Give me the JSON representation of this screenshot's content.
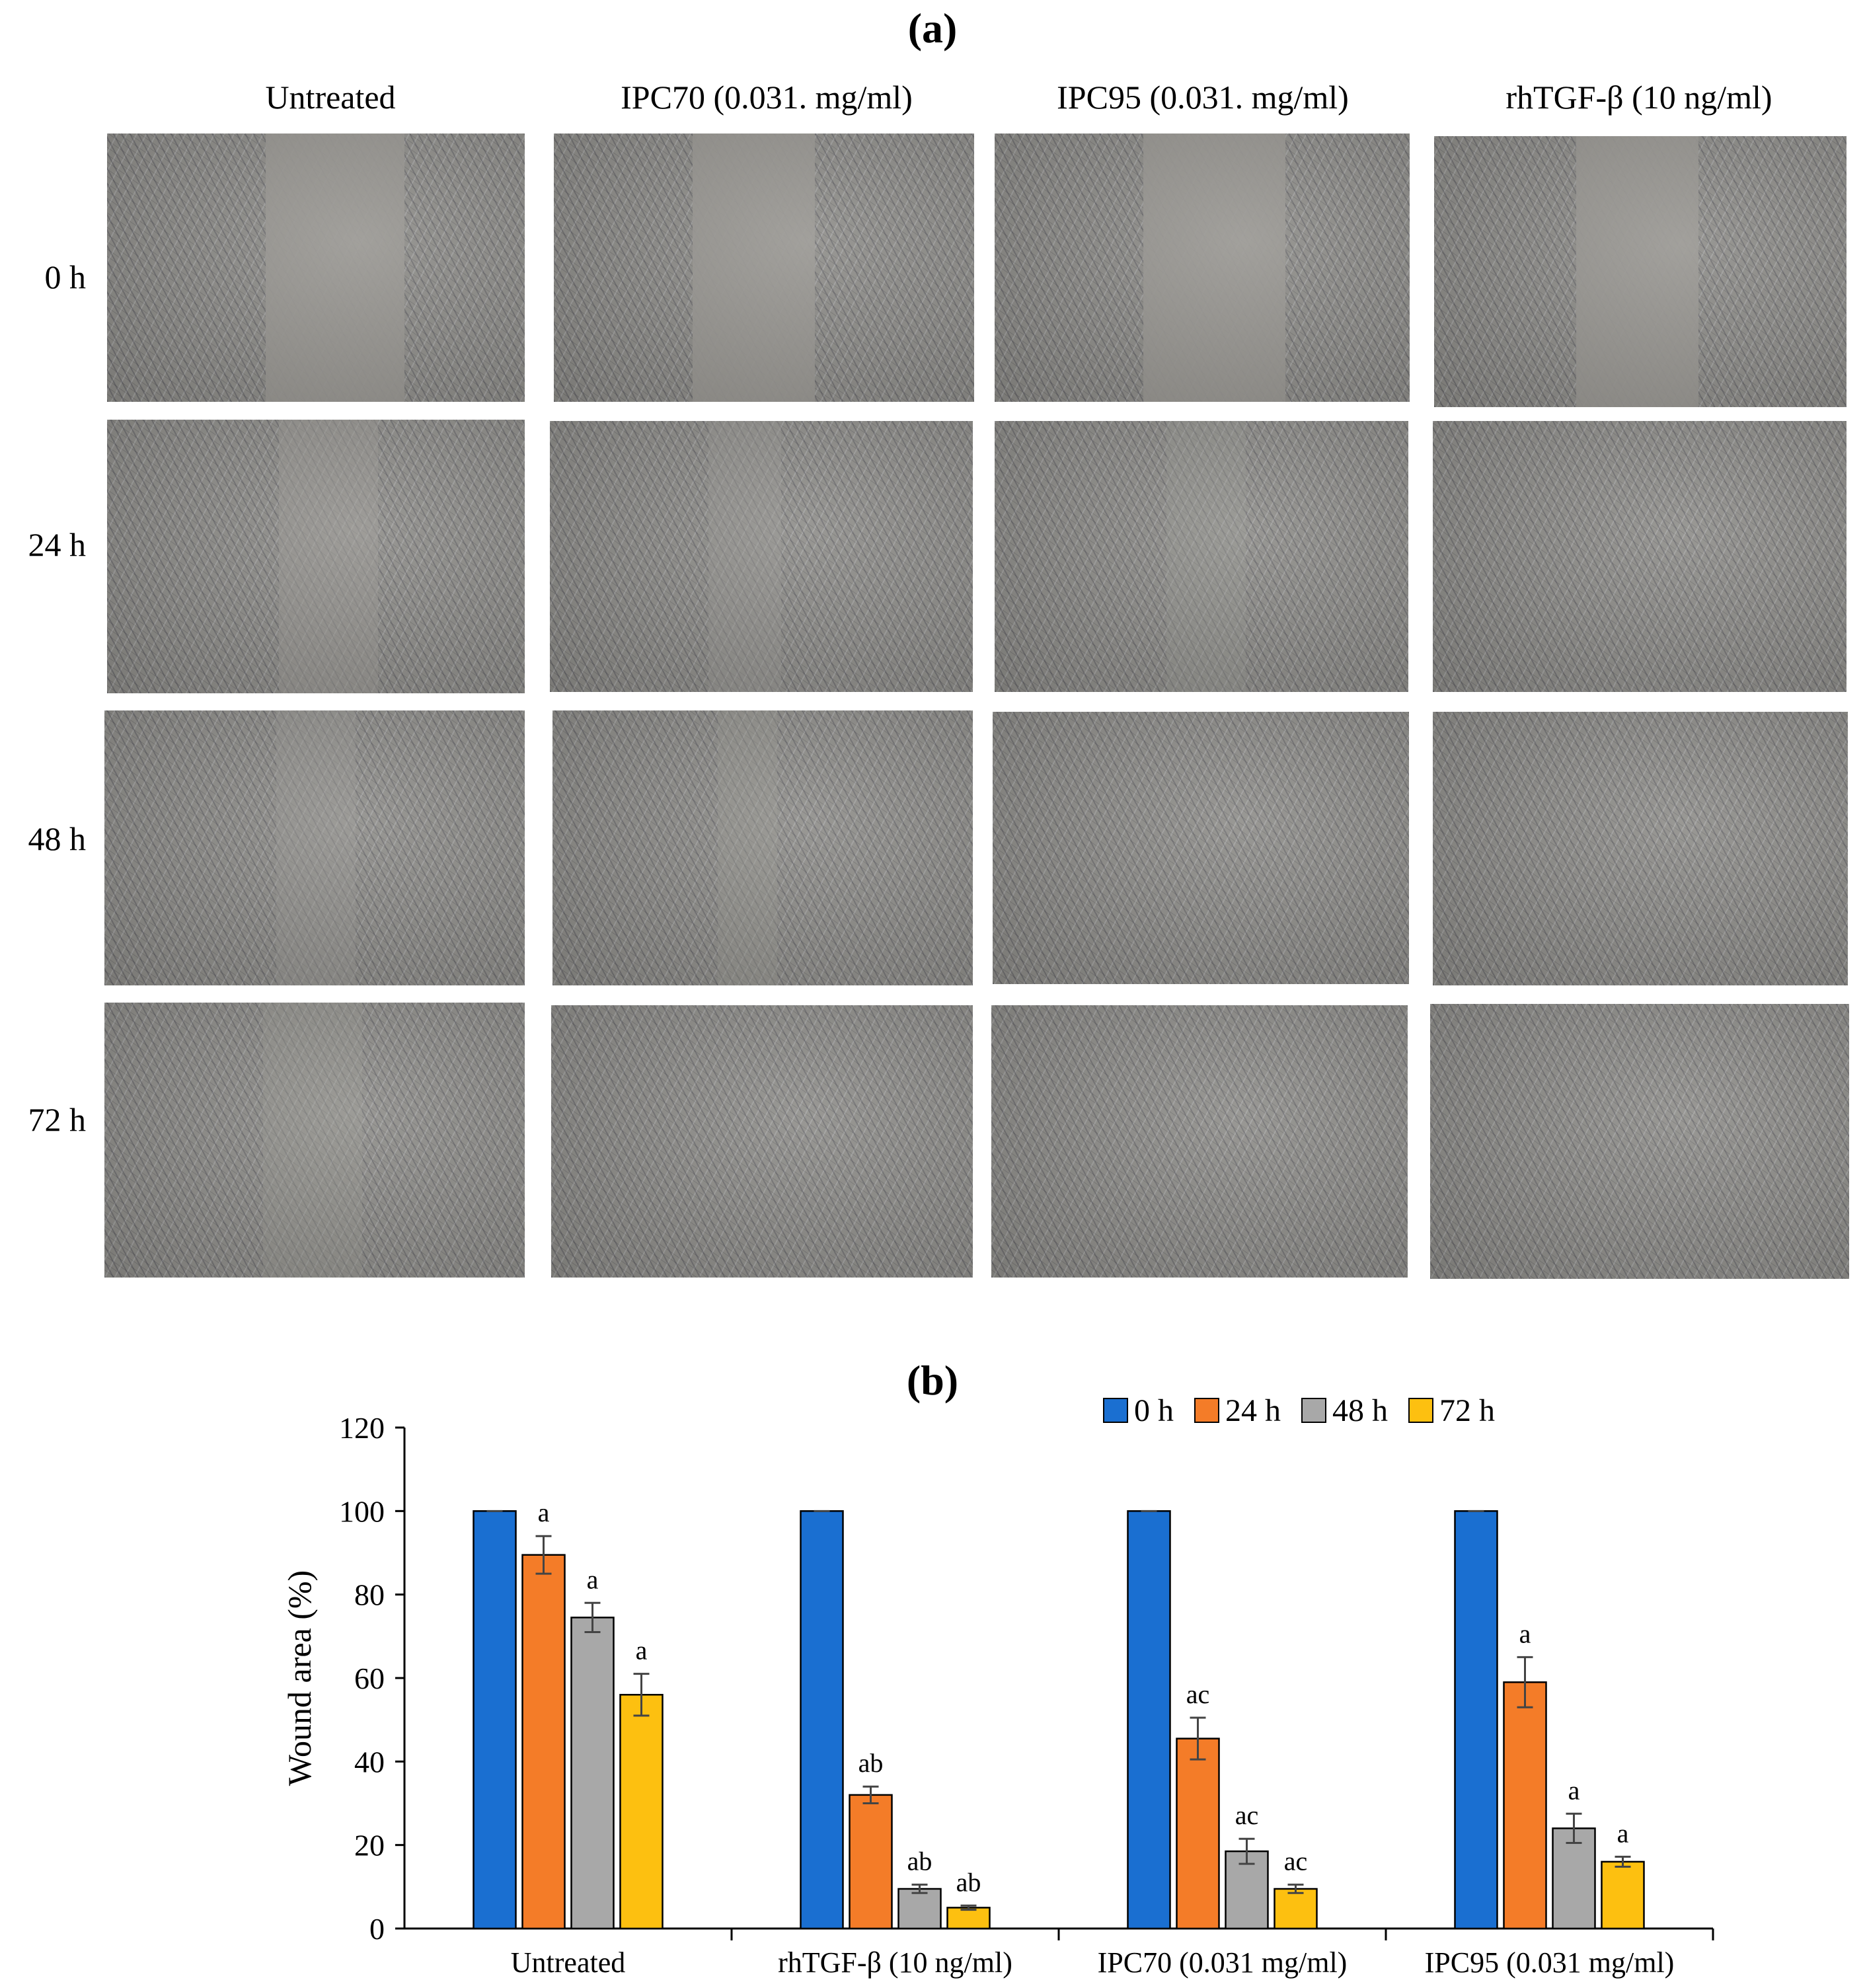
{
  "panel_a": {
    "label": "(a)",
    "columns": [
      "Untreated",
      "IPC70 (0.031. mg/ml)",
      "IPC95 (0.031. mg/ml)",
      "rhTGF-β (10 ng/ml)"
    ],
    "rows": [
      "0 h",
      "24 h",
      "48 h",
      "72 h"
    ]
  },
  "panel_b": {
    "label": "(b)"
  },
  "chart_data": {
    "type": "bar",
    "categories": [
      "Untreated",
      "rhTGF-β (10 ng/ml)",
      "IPC70 (0.031 mg/ml)",
      "IPC95 (0.031 mg/ml)"
    ],
    "series": [
      {
        "name": "0 h",
        "color": "#1a6fd1",
        "values": [
          100,
          100,
          100,
          100
        ],
        "errors": [
          0,
          0,
          0,
          0
        ],
        "labels": [
          "",
          "",
          "",
          ""
        ]
      },
      {
        "name": "24 h",
        "color": "#f47c28",
        "values": [
          89.5,
          32,
          45.5,
          59
        ],
        "errors": [
          4.5,
          2,
          5,
          6
        ],
        "labels": [
          "a",
          "ab",
          "ac",
          "a"
        ]
      },
      {
        "name": "48 h",
        "color": "#a8a8a8",
        "values": [
          74.5,
          9.5,
          18.5,
          24
        ],
        "errors": [
          3.5,
          1,
          3,
          3.5
        ],
        "labels": [
          "a",
          "ab",
          "ac",
          "a"
        ]
      },
      {
        "name": "72 h",
        "color": "#fdc010",
        "values": [
          56,
          5,
          9.5,
          16
        ],
        "errors": [
          5,
          0.5,
          1,
          1.2
        ],
        "labels": [
          "a",
          "ab",
          "ac",
          "a"
        ]
      }
    ],
    "ylabel": "Wound area (%)",
    "ylim": [
      0,
      120
    ],
    "yticks": [
      0,
      20,
      40,
      60,
      80,
      100,
      120
    ],
    "legend_position": "top-right",
    "grid": false
  }
}
